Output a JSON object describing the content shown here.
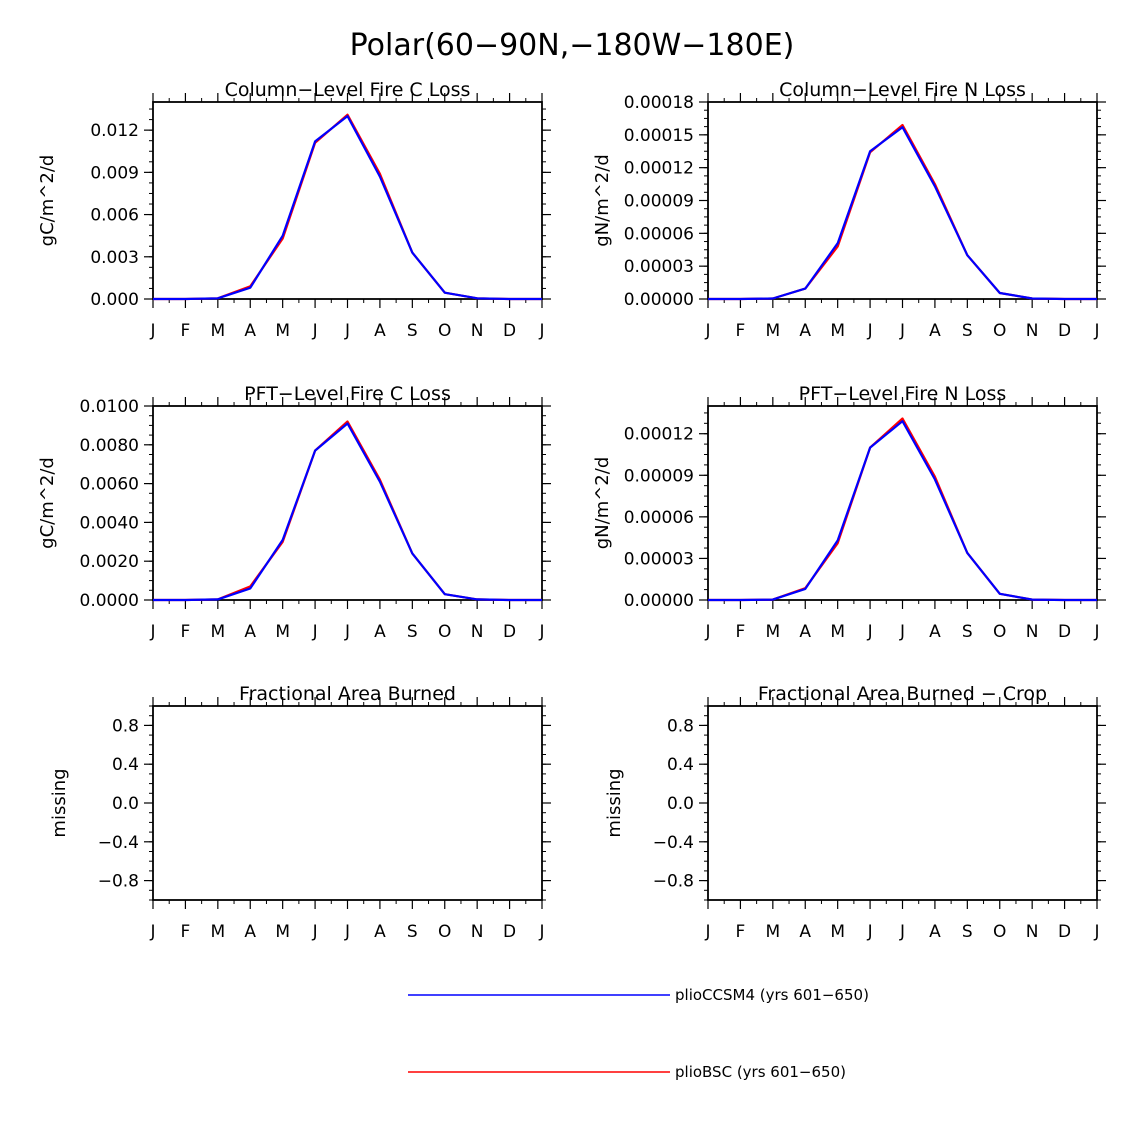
{
  "figure": {
    "title": "Polar(60−90N,−180W−180E)"
  },
  "months": [
    "J",
    "F",
    "M",
    "A",
    "M",
    "J",
    "J",
    "A",
    "S",
    "O",
    "N",
    "D",
    "J"
  ],
  "legend": {
    "items": [
      {
        "label": "plioCCSM4 (yrs 601−650)",
        "color": "#0000ff"
      },
      {
        "label": "plioBSC (yrs 601−650)",
        "color": "#ff0000"
      }
    ]
  },
  "chart_data": [
    {
      "type": "line",
      "title": "Column−Level Fire C Loss",
      "ylabel": "gC/m^2/d",
      "ylim": [
        0,
        0.014
      ],
      "yticks": [
        0,
        0.003,
        0.006,
        0.009,
        0.012
      ],
      "ytick_labels": [
        "0.000",
        "0.003",
        "0.006",
        "0.009",
        "0.012"
      ],
      "x": [
        "J",
        "F",
        "M",
        "A",
        "M",
        "J",
        "J",
        "A",
        "S",
        "O",
        "N",
        "D",
        "J"
      ],
      "series": [
        {
          "name": "plioBSC (yrs 601−650)",
          "color": "#ff0000",
          "values": [
            0,
            0,
            5e-05,
            0.0009,
            0.0043,
            0.0111,
            0.0131,
            0.0089,
            0.0033,
            0.00045,
            5e-05,
            0,
            0
          ]
        },
        {
          "name": "plioCCSM4 (yrs 601−650)",
          "color": "#0000ff",
          "values": [
            0,
            0,
            5e-05,
            0.0008,
            0.0045,
            0.0112,
            0.013,
            0.0087,
            0.0033,
            0.00045,
            5e-05,
            0,
            0
          ]
        }
      ]
    },
    {
      "type": "line",
      "title": "Column−Level Fire N Loss",
      "ylabel": "gN/m^2/d",
      "ylim": [
        0,
        0.00018
      ],
      "yticks": [
        0,
        3e-05,
        6e-05,
        9e-05,
        0.00012,
        0.00015,
        0.00018
      ],
      "ytick_labels": [
        "0.00000",
        "0.00003",
        "0.00006",
        "0.00009",
        "0.00012",
        "0.00015",
        "0.00018"
      ],
      "x": [
        "J",
        "F",
        "M",
        "A",
        "M",
        "J",
        "J",
        "A",
        "S",
        "O",
        "N",
        "D",
        "J"
      ],
      "series": [
        {
          "name": "plioBSC (yrs 601−650)",
          "color": "#ff0000",
          "values": [
            0,
            0,
            5e-07,
            9.5e-06,
            4.8e-05,
            0.000134,
            0.000159,
            0.000105,
            4e-05,
            5.5e-06,
            5e-07,
            0,
            0
          ]
        },
        {
          "name": "plioCCSM4 (yrs 601−650)",
          "color": "#0000ff",
          "values": [
            0,
            0,
            5e-07,
            9.5e-06,
            5.1e-05,
            0.000135,
            0.000157,
            0.000103,
            4e-05,
            5.5e-06,
            5e-07,
            0,
            0
          ]
        }
      ]
    },
    {
      "type": "line",
      "title": "PFT−Level Fire C Loss",
      "ylabel": "gC/m^2/d",
      "ylim": [
        0,
        0.01
      ],
      "yticks": [
        0,
        0.002,
        0.004,
        0.006,
        0.008,
        0.01
      ],
      "ytick_labels": [
        "0.0000",
        "0.0020",
        "0.0040",
        "0.0060",
        "0.0080",
        "0.0100"
      ],
      "x": [
        "J",
        "F",
        "M",
        "A",
        "M",
        "J",
        "J",
        "A",
        "S",
        "O",
        "N",
        "D",
        "J"
      ],
      "series": [
        {
          "name": "plioBSC (yrs 601−650)",
          "color": "#ff0000",
          "values": [
            0,
            0,
            3e-05,
            0.0007,
            0.003,
            0.0077,
            0.0092,
            0.0062,
            0.0024,
            0.0003,
            3e-05,
            0,
            0
          ]
        },
        {
          "name": "plioCCSM4 (yrs 601−650)",
          "color": "#0000ff",
          "values": [
            0,
            0,
            3e-05,
            0.0006,
            0.0031,
            0.0077,
            0.0091,
            0.0061,
            0.0024,
            0.0003,
            3e-05,
            0,
            0
          ]
        }
      ]
    },
    {
      "type": "line",
      "title": "PFT−Level Fire N Loss",
      "ylabel": "gN/m^2/d",
      "ylim": [
        0,
        0.00014
      ],
      "yticks": [
        0,
        3e-05,
        6e-05,
        9e-05,
        0.00012
      ],
      "ytick_labels": [
        "0.00000",
        "0.00003",
        "0.00006",
        "0.00009",
        "0.00012"
      ],
      "x": [
        "J",
        "F",
        "M",
        "A",
        "M",
        "J",
        "J",
        "A",
        "S",
        "O",
        "N",
        "D",
        "J"
      ],
      "series": [
        {
          "name": "plioBSC (yrs 601−650)",
          "color": "#ff0000",
          "values": [
            0,
            0,
            3e-07,
            8.5e-06,
            4.1e-05,
            0.00011,
            0.000131,
            8.9e-05,
            3.4e-05,
            4.5e-06,
            3e-07,
            0,
            0
          ]
        },
        {
          "name": "plioCCSM4 (yrs 601−650)",
          "color": "#0000ff",
          "values": [
            0,
            0,
            3e-07,
            8e-06,
            4.3e-05,
            0.00011,
            0.000129,
            8.7e-05,
            3.4e-05,
            4.5e-06,
            3e-07,
            0,
            0
          ]
        }
      ]
    },
    {
      "type": "line",
      "title": "Fractional Area Burned",
      "ylabel": "missing",
      "ylim": [
        -1,
        1
      ],
      "yticks": [
        -0.8,
        -0.4,
        0,
        0.4,
        0.8
      ],
      "ytick_labels": [
        "−0.8",
        "−0.4",
        "0.0",
        "0.4",
        "0.8"
      ],
      "x": [
        "J",
        "F",
        "M",
        "A",
        "M",
        "J",
        "J",
        "A",
        "S",
        "O",
        "N",
        "D",
        "J"
      ],
      "series": []
    },
    {
      "type": "line",
      "title": "Fractional Area Burned − Crop",
      "ylabel": "missing",
      "ylim": [
        -1,
        1
      ],
      "yticks": [
        -0.8,
        -0.4,
        0,
        0.4,
        0.8
      ],
      "ytick_labels": [
        "−0.8",
        "−0.4",
        "0.0",
        "0.4",
        "0.8"
      ],
      "x": [
        "J",
        "F",
        "M",
        "A",
        "M",
        "J",
        "J",
        "A",
        "S",
        "O",
        "N",
        "D",
        "J"
      ],
      "series": []
    }
  ]
}
